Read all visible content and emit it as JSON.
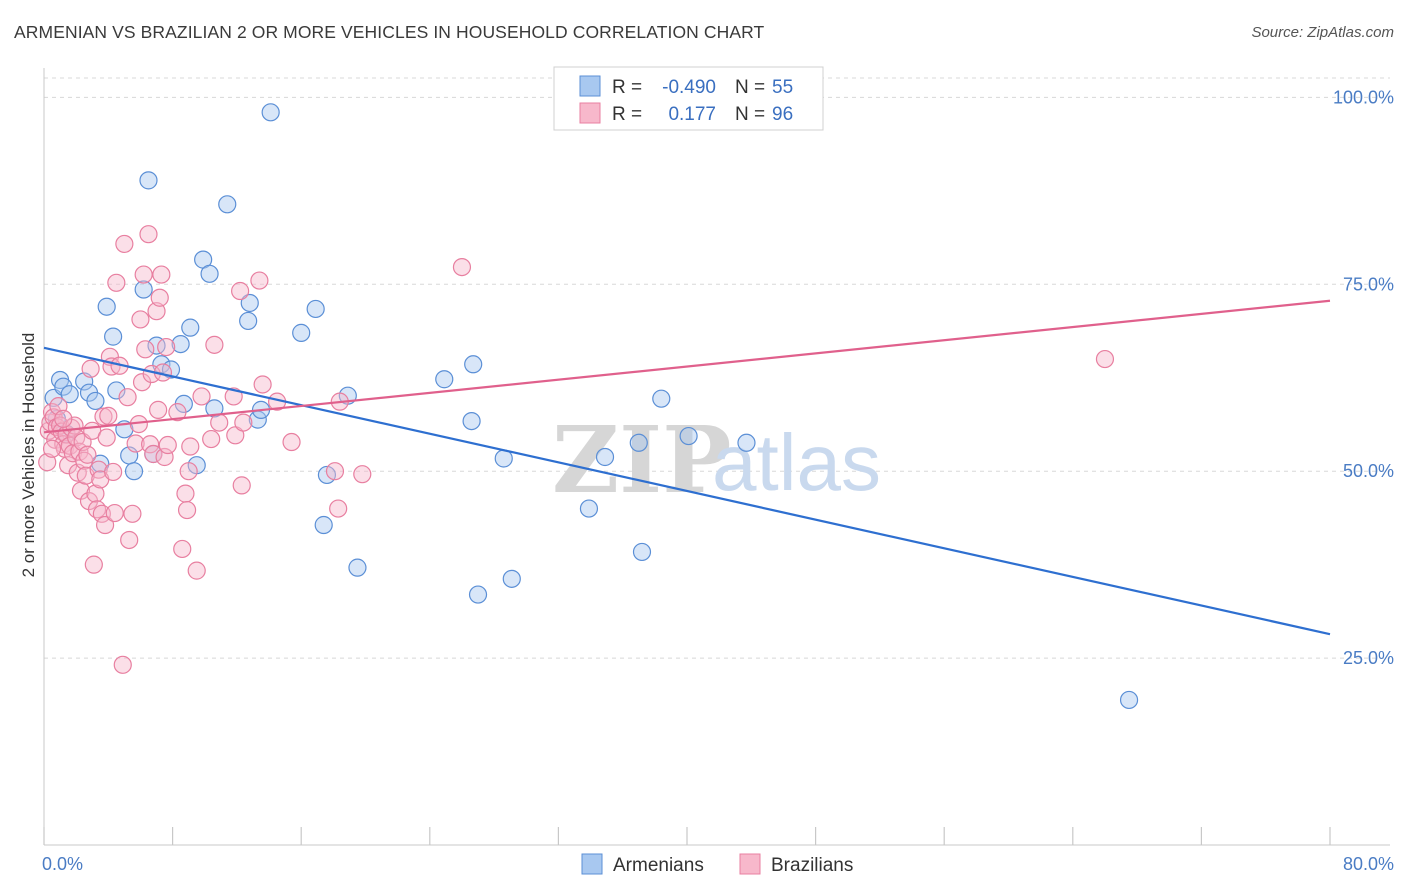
{
  "title": "ARMENIAN VS BRAZILIAN 2 OR MORE VEHICLES IN HOUSEHOLD CORRELATION CHART",
  "source": "Source: ZipAtlas.com",
  "watermark": {
    "zip": "ZIP",
    "atlas": "atlas"
  },
  "legend": {
    "rows": [
      {
        "r_label": "R =",
        "r_value": "-0.490",
        "n_label": "N =",
        "n_value": "55"
      },
      {
        "r_label": "R =",
        "r_value": "0.177",
        "n_label": "N =",
        "n_value": "96"
      }
    ]
  },
  "bottom_legend": {
    "armenians": "Armenians",
    "brazilians": "Brazilians"
  },
  "colors": {
    "armenian_fill": "#a8c8f0",
    "armenian_stroke": "#5b8fd6",
    "armenian_line": "#2e6fd0",
    "brazilian_fill": "#f7b8cb",
    "brazilian_stroke": "#e87fa0",
    "brazilian_line": "#e0608c",
    "grid": "#d8d8d8",
    "axis_text": "#4a7cc4"
  },
  "chart_data": {
    "type": "scatter",
    "title": "ARMENIAN VS BRAZILIAN 2 OR MORE VEHICLES IN HOUSEHOLD CORRELATION CHART",
    "xlabel": "",
    "ylabel": "2 or more Vehicles in Household",
    "xlim": [
      0,
      80
    ],
    "ylim": [
      0,
      105
    ],
    "x_tick_labels": [
      "0.0%",
      "80.0%"
    ],
    "y_ticks": [
      25,
      50,
      75,
      100
    ],
    "y_tick_labels": [
      "25.0%",
      "50.0%",
      "75.0%",
      "100.0%"
    ],
    "grid": true,
    "legend_position": "top-center",
    "series": [
      {
        "name": "Armenians",
        "r": -0.49,
        "n": 55,
        "trend": {
          "x": [
            0,
            80
          ],
          "y": [
            66.5,
            28.2
          ]
        },
        "points": [
          [
            0.6,
            59.8
          ],
          [
            1.0,
            62.2
          ],
          [
            1.2,
            61.3
          ],
          [
            1.6,
            60.3
          ],
          [
            2.5,
            62.0
          ],
          [
            2.8,
            60.5
          ],
          [
            3.2,
            59.4
          ],
          [
            3.5,
            51.0
          ],
          [
            3.9,
            72.0
          ],
          [
            4.3,
            68.0
          ],
          [
            4.5,
            60.8
          ],
          [
            5.0,
            55.6
          ],
          [
            5.3,
            52.1
          ],
          [
            5.6,
            50.0
          ],
          [
            6.2,
            74.3
          ],
          [
            6.5,
            88.9
          ],
          [
            6.8,
            52.3
          ],
          [
            7.0,
            66.8
          ],
          [
            7.3,
            64.3
          ],
          [
            7.9,
            63.6
          ],
          [
            8.5,
            67.0
          ],
          [
            8.7,
            59.0
          ],
          [
            9.1,
            69.2
          ],
          [
            9.5,
            50.8
          ],
          [
            9.9,
            78.3
          ],
          [
            10.3,
            76.4
          ],
          [
            10.6,
            58.4
          ],
          [
            11.4,
            85.7
          ],
          [
            12.7,
            70.1
          ],
          [
            12.8,
            72.5
          ],
          [
            13.3,
            56.9
          ],
          [
            13.5,
            58.2
          ],
          [
            14.1,
            98.0
          ],
          [
            16.0,
            68.5
          ],
          [
            16.9,
            71.7
          ],
          [
            17.4,
            42.8
          ],
          [
            17.6,
            49.5
          ],
          [
            18.9,
            60.1
          ],
          [
            19.5,
            37.1
          ],
          [
            24.9,
            62.3
          ],
          [
            26.6,
            56.7
          ],
          [
            26.7,
            64.3
          ],
          [
            27.0,
            33.5
          ],
          [
            28.6,
            51.7
          ],
          [
            29.1,
            35.6
          ],
          [
            33.9,
            45.0
          ],
          [
            34.9,
            51.9
          ],
          [
            37.0,
            53.8
          ],
          [
            37.2,
            39.2
          ],
          [
            38.4,
            59.7
          ],
          [
            40.1,
            54.7
          ],
          [
            43.7,
            53.8
          ],
          [
            67.5,
            19.4
          ],
          [
            0.8,
            57.0
          ],
          [
            1.4,
            55.0
          ]
        ]
      },
      {
        "name": "Brazilians",
        "r": 0.177,
        "n": 96,
        "trend": {
          "x": [
            0,
            80
          ],
          "y": [
            55.2,
            72.8
          ]
        },
        "points": [
          [
            0.2,
            51.2
          ],
          [
            0.3,
            55.4
          ],
          [
            0.4,
            56.5
          ],
          [
            0.5,
            57.9
          ],
          [
            0.6,
            57.2
          ],
          [
            0.7,
            54.2
          ],
          [
            0.8,
            55.9
          ],
          [
            0.9,
            58.7
          ],
          [
            1.0,
            56.1
          ],
          [
            1.1,
            55.3
          ],
          [
            1.2,
            53.6
          ],
          [
            1.3,
            53.0
          ],
          [
            1.4,
            54.9
          ],
          [
            1.5,
            50.8
          ],
          [
            1.6,
            53.4
          ],
          [
            1.7,
            55.8
          ],
          [
            1.8,
            52.4
          ],
          [
            1.9,
            56.1
          ],
          [
            2.0,
            54.5
          ],
          [
            2.1,
            49.8
          ],
          [
            2.2,
            52.6
          ],
          [
            2.3,
            47.4
          ],
          [
            2.4,
            53.9
          ],
          [
            2.5,
            51.4
          ],
          [
            2.6,
            49.4
          ],
          [
            2.7,
            52.2
          ],
          [
            2.8,
            46.0
          ],
          [
            2.9,
            63.7
          ],
          [
            3.0,
            55.4
          ],
          [
            3.1,
            37.5
          ],
          [
            3.2,
            47.0
          ],
          [
            3.3,
            44.9
          ],
          [
            3.4,
            50.2
          ],
          [
            3.5,
            48.9
          ],
          [
            3.6,
            44.3
          ],
          [
            3.7,
            57.3
          ],
          [
            3.8,
            42.8
          ],
          [
            3.9,
            54.5
          ],
          [
            4.0,
            57.4
          ],
          [
            4.1,
            65.3
          ],
          [
            4.2,
            64.0
          ],
          [
            4.3,
            49.9
          ],
          [
            4.4,
            44.4
          ],
          [
            4.5,
            75.2
          ],
          [
            4.7,
            64.1
          ],
          [
            4.9,
            24.1
          ],
          [
            5.0,
            80.4
          ],
          [
            5.2,
            59.9
          ],
          [
            5.3,
            40.8
          ],
          [
            5.5,
            44.3
          ],
          [
            5.7,
            53.7
          ],
          [
            5.9,
            56.3
          ],
          [
            6.0,
            70.3
          ],
          [
            6.1,
            61.9
          ],
          [
            6.2,
            76.3
          ],
          [
            6.3,
            66.3
          ],
          [
            6.5,
            81.7
          ],
          [
            6.6,
            53.6
          ],
          [
            6.7,
            63.0
          ],
          [
            6.8,
            52.3
          ],
          [
            7.0,
            71.4
          ],
          [
            7.1,
            58.2
          ],
          [
            7.2,
            73.2
          ],
          [
            7.3,
            76.3
          ],
          [
            7.4,
            63.2
          ],
          [
            7.5,
            51.9
          ],
          [
            7.6,
            66.6
          ],
          [
            7.7,
            53.5
          ],
          [
            8.3,
            57.9
          ],
          [
            8.6,
            39.6
          ],
          [
            8.8,
            47.0
          ],
          [
            8.9,
            44.8
          ],
          [
            9.0,
            50.0
          ],
          [
            9.1,
            53.3
          ],
          [
            9.5,
            36.7
          ],
          [
            9.8,
            60.0
          ],
          [
            10.4,
            54.3
          ],
          [
            10.6,
            66.9
          ],
          [
            10.9,
            56.5
          ],
          [
            11.8,
            60.0
          ],
          [
            11.9,
            54.8
          ],
          [
            12.2,
            74.1
          ],
          [
            12.3,
            48.1
          ],
          [
            12.4,
            56.5
          ],
          [
            13.4,
            75.5
          ],
          [
            13.6,
            61.6
          ],
          [
            14.5,
            59.3
          ],
          [
            15.4,
            53.9
          ],
          [
            18.1,
            50.0
          ],
          [
            18.3,
            45.0
          ],
          [
            18.4,
            59.3
          ],
          [
            19.8,
            49.6
          ],
          [
            26.0,
            77.3
          ],
          [
            66.0,
            65.0
          ],
          [
            0.5,
            53.0
          ],
          [
            1.2,
            57.0
          ]
        ]
      }
    ]
  }
}
